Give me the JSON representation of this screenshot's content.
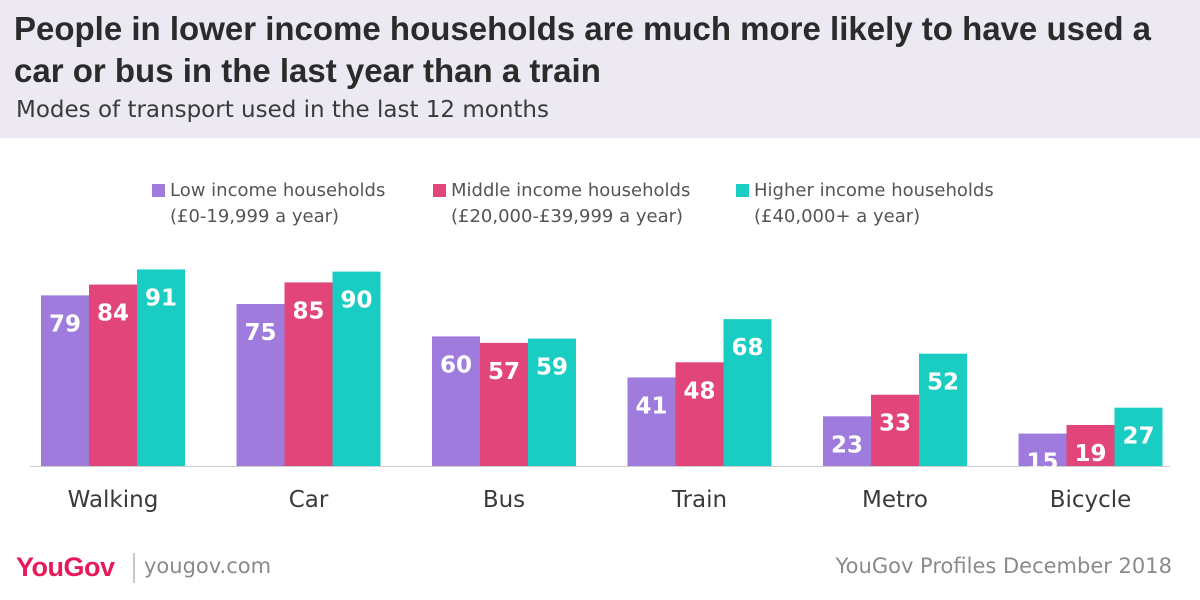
{
  "header": {
    "title": "People in lower income households are much more likely to have used a car or bus in the last year than a train",
    "subtitle": "Modes of transport used in the last 12 months"
  },
  "legend": [
    {
      "line1": "Low income households",
      "line2": "(£0-19,999 a year)",
      "color": "#9e7bdc"
    },
    {
      "line1": "Middle income households",
      "line2": "(£20,000-£39,999 a year)",
      "color": "#e2457a"
    },
    {
      "line1": "Higher income households",
      "line2": "(£40,000+ a year)",
      "color": "#19cdc2"
    }
  ],
  "chart_data": {
    "type": "bar",
    "categories": [
      "Walking",
      "Car",
      "Bus",
      "Train",
      "Metro",
      "Bicycle"
    ],
    "series": [
      {
        "name": "Low income households (£0-19,999 a year)",
        "color": "#9e7bdc",
        "values": [
          79,
          75,
          60,
          41,
          23,
          15
        ]
      },
      {
        "name": "Middle income households (£20,000-£39,999 a year)",
        "color": "#e2457a",
        "values": [
          84,
          85,
          57,
          48,
          33,
          19
        ]
      },
      {
        "name": "Higher income households (£40,000+ a year)",
        "color": "#19cdc2",
        "values": [
          91,
          90,
          59,
          68,
          52,
          27
        ]
      }
    ],
    "ylim": [
      0,
      100
    ],
    "grid": false,
    "legend_position": "top"
  },
  "footer": {
    "logo": "YouGov",
    "url": "yougov.com",
    "source": "YouGov Profiles December 2018"
  }
}
